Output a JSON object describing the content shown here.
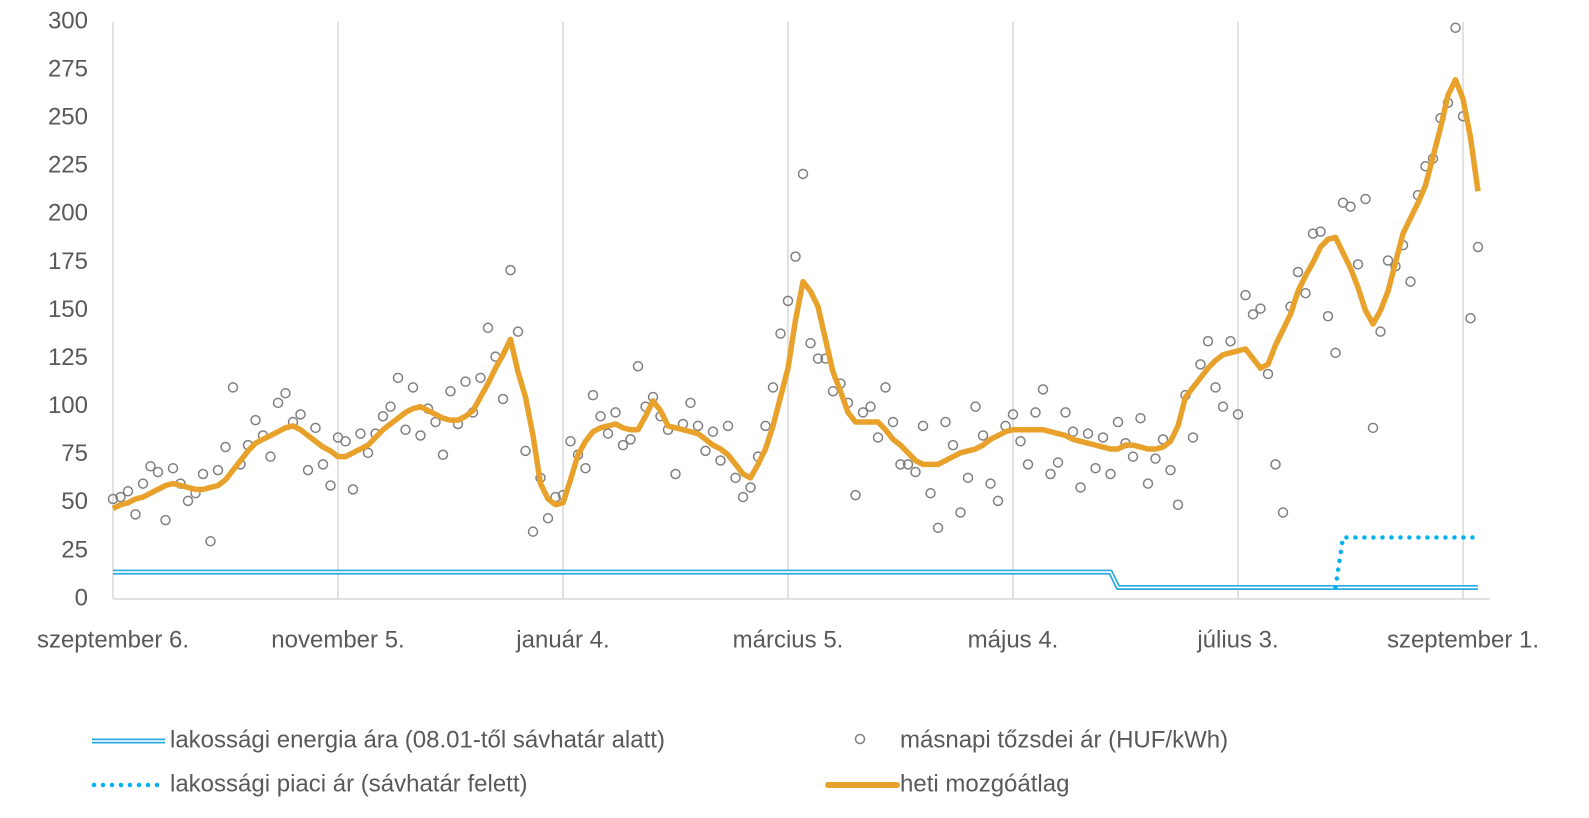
{
  "chart_data": {
    "type": "line",
    "categories": [
      "szeptember 6.",
      null,
      null,
      null,
      null,
      null,
      null,
      null,
      null,
      null,
      null,
      null,
      null,
      null,
      null,
      null,
      null,
      null,
      null,
      null,
      null,
      null,
      null,
      null,
      null,
      null,
      null,
      null,
      null,
      null,
      "november 5.",
      null,
      null,
      null,
      null,
      null,
      null,
      null,
      null,
      null,
      null,
      null,
      null,
      null,
      null,
      null,
      null,
      null,
      null,
      null,
      null,
      null,
      null,
      null,
      null,
      null,
      null,
      null,
      null,
      null,
      "január 4.",
      null,
      null,
      null,
      null,
      null,
      null,
      null,
      null,
      null,
      null,
      null,
      null,
      null,
      null,
      null,
      null,
      null,
      null,
      null,
      null,
      null,
      null,
      null,
      null,
      null,
      null,
      null,
      null,
      null,
      "március 5.",
      null,
      null,
      null,
      null,
      null,
      null,
      null,
      null,
      null,
      null,
      null,
      null,
      null,
      null,
      null,
      null,
      null,
      null,
      null,
      null,
      null,
      null,
      null,
      null,
      null,
      null,
      null,
      null,
      null,
      "május 4.",
      null,
      null,
      null,
      null,
      null,
      null,
      null,
      null,
      null,
      null,
      null,
      null,
      null,
      null,
      null,
      null,
      null,
      null,
      null,
      null,
      null,
      null,
      null,
      null,
      null,
      null,
      null,
      null,
      null,
      "július 3.",
      null,
      null,
      null,
      null,
      null,
      null,
      null,
      null,
      null,
      null,
      null,
      null,
      null,
      null,
      null,
      null,
      null,
      null,
      null,
      null,
      null,
      null,
      null,
      null,
      null,
      null,
      null,
      null,
      null,
      "szeptember 1.",
      null,
      null
    ],
    "series": [
      {
        "name": "lakossági energia ára (08.01-től sávhatár alatt)",
        "color": "#29abe2",
        "style": "double",
        "values": [
          14,
          14,
          14,
          14,
          14,
          14,
          14,
          14,
          14,
          14,
          14,
          14,
          14,
          14,
          14,
          14,
          14,
          14,
          14,
          14,
          14,
          14,
          14,
          14,
          14,
          14,
          14,
          14,
          14,
          14,
          14,
          14,
          14,
          14,
          14,
          14,
          14,
          14,
          14,
          14,
          14,
          14,
          14,
          14,
          14,
          14,
          14,
          14,
          14,
          14,
          14,
          14,
          14,
          14,
          14,
          14,
          14,
          14,
          14,
          14,
          14,
          14,
          14,
          14,
          14,
          14,
          14,
          14,
          14,
          14,
          14,
          14,
          14,
          14,
          14,
          14,
          14,
          14,
          14,
          14,
          14,
          14,
          14,
          14,
          14,
          14,
          14,
          14,
          14,
          14,
          14,
          14,
          14,
          14,
          14,
          14,
          14,
          14,
          14,
          14,
          14,
          14,
          14,
          14,
          14,
          14,
          14,
          14,
          14,
          14,
          14,
          14,
          14,
          14,
          14,
          14,
          14,
          14,
          14,
          14,
          14,
          14,
          14,
          14,
          14,
          14,
          14,
          14,
          14,
          14,
          14,
          14,
          14,
          14,
          6,
          6,
          6,
          6,
          6,
          6,
          6,
          6,
          6,
          6,
          6,
          6,
          6,
          6,
          6,
          6,
          6,
          6,
          6,
          6,
          6,
          6,
          6,
          6,
          6,
          6,
          6,
          6,
          6,
          6,
          6,
          6,
          6,
          6,
          6,
          6,
          6,
          6,
          6,
          6,
          6,
          6,
          6,
          6,
          6,
          6,
          6,
          6,
          6
        ]
      },
      {
        "name": "másnapi tőzsdei ár (HUF/kWh)",
        "color": "#808080",
        "style": "markers",
        "values": [
          52,
          53,
          56,
          44,
          60,
          69,
          66,
          41,
          68,
          60,
          51,
          55,
          65,
          30,
          67,
          79,
          110,
          70,
          80,
          93,
          85,
          74,
          102,
          107,
          92,
          96,
          67,
          89,
          70,
          59,
          84,
          82,
          57,
          86,
          76,
          86,
          95,
          100,
          115,
          88,
          110,
          85,
          99,
          92,
          75,
          108,
          91,
          113,
          97,
          115,
          141,
          126,
          104,
          171,
          139,
          77,
          35,
          63,
          42,
          53,
          54,
          82,
          75,
          68,
          106,
          95,
          86,
          97,
          80,
          83,
          121,
          100,
          105,
          95,
          88,
          65,
          91,
          102,
          90,
          77,
          87,
          72,
          90,
          63,
          53,
          58,
          74,
          90,
          110,
          138,
          155,
          178,
          221,
          133,
          125,
          125,
          108,
          112,
          102,
          54,
          97,
          100,
          84,
          110,
          92,
          70,
          70,
          66,
          90,
          55,
          37,
          92,
          80,
          45,
          63,
          100,
          85,
          60,
          51,
          90,
          96,
          82,
          70,
          97,
          109,
          65,
          71,
          97,
          87,
          58,
          86,
          68,
          84,
          65,
          92,
          81,
          74,
          94,
          60,
          73,
          83,
          67,
          49,
          106,
          84,
          122,
          134,
          110,
          100,
          134,
          96,
          158,
          148,
          151,
          117,
          70,
          45,
          152,
          170,
          159,
          190,
          191,
          147,
          128,
          206,
          204,
          174,
          208,
          89,
          139,
          176,
          173,
          184,
          165,
          210,
          225,
          229,
          250,
          258,
          297,
          251,
          146,
          183
        ]
      },
      {
        "name": "lakossági piaci ár (sávhatár felett)",
        "color": "#00b0f0",
        "style": "dotted",
        "values": [
          null,
          null,
          null,
          null,
          null,
          null,
          null,
          null,
          null,
          null,
          null,
          null,
          null,
          null,
          null,
          null,
          null,
          null,
          null,
          null,
          null,
          null,
          null,
          null,
          null,
          null,
          null,
          null,
          null,
          null,
          null,
          null,
          null,
          null,
          null,
          null,
          null,
          null,
          null,
          null,
          null,
          null,
          null,
          null,
          null,
          null,
          null,
          null,
          null,
          null,
          null,
          null,
          null,
          null,
          null,
          null,
          null,
          null,
          null,
          null,
          null,
          null,
          null,
          null,
          null,
          null,
          null,
          null,
          null,
          null,
          null,
          null,
          null,
          null,
          null,
          null,
          null,
          null,
          null,
          null,
          null,
          null,
          null,
          null,
          null,
          null,
          null,
          null,
          null,
          null,
          null,
          null,
          null,
          null,
          null,
          null,
          null,
          null,
          null,
          null,
          null,
          null,
          null,
          null,
          null,
          null,
          null,
          null,
          null,
          null,
          null,
          null,
          null,
          null,
          null,
          null,
          null,
          null,
          null,
          null,
          null,
          null,
          null,
          null,
          null,
          null,
          null,
          null,
          null,
          null,
          null,
          null,
          null,
          null,
          null,
          null,
          null,
          null,
          null,
          null,
          null,
          null,
          null,
          null,
          null,
          null,
          null,
          null,
          null,
          null,
          null,
          null,
          null,
          null,
          null,
          null,
          null,
          null,
          null,
          null,
          null,
          null,
          null,
          6,
          32,
          32,
          32,
          32,
          32,
          32,
          32,
          32,
          32,
          32,
          32,
          32,
          32,
          32,
          32,
          32,
          32,
          32,
          32
        ]
      },
      {
        "name": "heti mozgóátlag",
        "color": "#e8a22b",
        "style": "solid",
        "values": [
          47,
          49,
          50,
          52,
          53,
          55,
          57,
          59,
          60,
          59,
          58,
          57,
          57,
          58,
          59,
          62,
          67,
          72,
          77,
          81,
          83,
          85,
          87,
          89,
          90,
          88,
          85,
          82,
          79,
          77,
          74,
          74,
          76,
          78,
          80,
          84,
          88,
          91,
          94,
          97,
          99,
          100,
          98,
          96,
          94,
          93,
          93,
          95,
          98,
          105,
          112,
          120,
          127,
          135,
          118,
          105,
          85,
          60,
          52,
          49,
          50,
          62,
          75,
          82,
          87,
          89,
          90,
          91,
          89,
          88,
          88,
          95,
          103,
          98,
          90,
          89,
          88,
          87,
          86,
          83,
          80,
          78,
          75,
          70,
          65,
          63,
          70,
          78,
          90,
          105,
          120,
          145,
          165,
          160,
          152,
          135,
          118,
          108,
          97,
          92,
          92,
          92,
          92,
          88,
          83,
          80,
          76,
          72,
          70,
          70,
          70,
          72,
          74,
          76,
          77,
          78,
          80,
          83,
          85,
          87,
          88,
          88,
          88,
          88,
          88,
          87,
          86,
          85,
          83,
          82,
          81,
          80,
          79,
          78,
          78,
          80,
          80,
          79,
          78,
          78,
          79,
          82,
          90,
          105,
          110,
          115,
          120,
          124,
          127,
          128,
          129,
          130,
          125,
          120,
          122,
          132,
          140,
          148,
          160,
          168,
          175,
          183,
          187,
          188,
          180,
          172,
          162,
          150,
          143,
          150,
          160,
          175,
          190,
          198,
          206,
          215,
          230,
          245,
          262,
          270,
          260,
          240,
          212
        ]
      }
    ],
    "ylim": [
      0,
      300
    ],
    "yticks": [
      0,
      25,
      50,
      75,
      100,
      125,
      150,
      175,
      200,
      225,
      250,
      275,
      300
    ],
    "grid": "x",
    "legend": "bottom"
  }
}
